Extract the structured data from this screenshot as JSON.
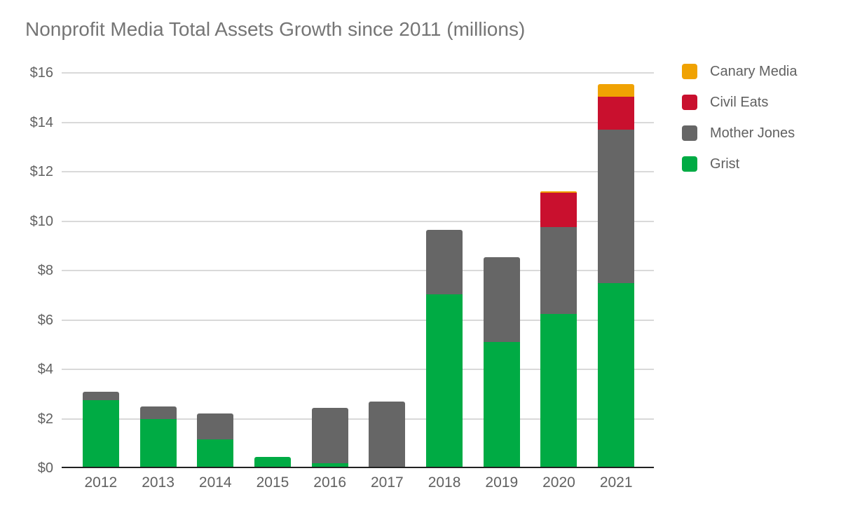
{
  "chart_data": {
    "type": "bar",
    "stacked": true,
    "title": "Nonprofit Media Total Assets Growth since 2011 (millions)",
    "categories": [
      "2012",
      "2013",
      "2014",
      "2015",
      "2016",
      "2017",
      "2018",
      "2019",
      "2020",
      "2021"
    ],
    "series": [
      {
        "name": "Grist",
        "color": "#00ab44",
        "values": [
          2.75,
          2.0,
          1.15,
          0.45,
          0.2,
          0.05,
          7.05,
          5.1,
          6.25,
          7.5
        ]
      },
      {
        "name": "Mother Jones",
        "color": "#666666",
        "values": [
          0.35,
          0.5,
          1.05,
          0,
          2.25,
          2.65,
          2.6,
          3.45,
          3.5,
          6.2
        ]
      },
      {
        "name": "Civil Eats",
        "color": "#c9102e",
        "values": [
          0,
          0,
          0,
          0,
          0,
          0,
          0,
          0,
          1.4,
          1.35
        ]
      },
      {
        "name": "Canary Media",
        "color": "#f0a202",
        "values": [
          0,
          0,
          0,
          0,
          0,
          0,
          0,
          0,
          0.05,
          0.5
        ]
      }
    ],
    "y_axis": {
      "min": 0,
      "max": 16,
      "tick_values": [
        16,
        14,
        12,
        10,
        8,
        6,
        4,
        2,
        0
      ],
      "tick_labels": [
        "$16",
        "$14",
        "$12",
        "$10",
        "$8",
        "$6",
        "$4",
        "$2",
        "$0"
      ]
    },
    "legend": {
      "position": "right",
      "entries": [
        "Canary Media",
        "Civil Eats",
        "Mother Jones",
        "Grist"
      ]
    },
    "grid": true,
    "style": {
      "gridline_color": "#d9d9d9",
      "axis_color": "#212121",
      "title_color": "#757575",
      "label_color": "#616161",
      "background": "#ffffff"
    }
  }
}
